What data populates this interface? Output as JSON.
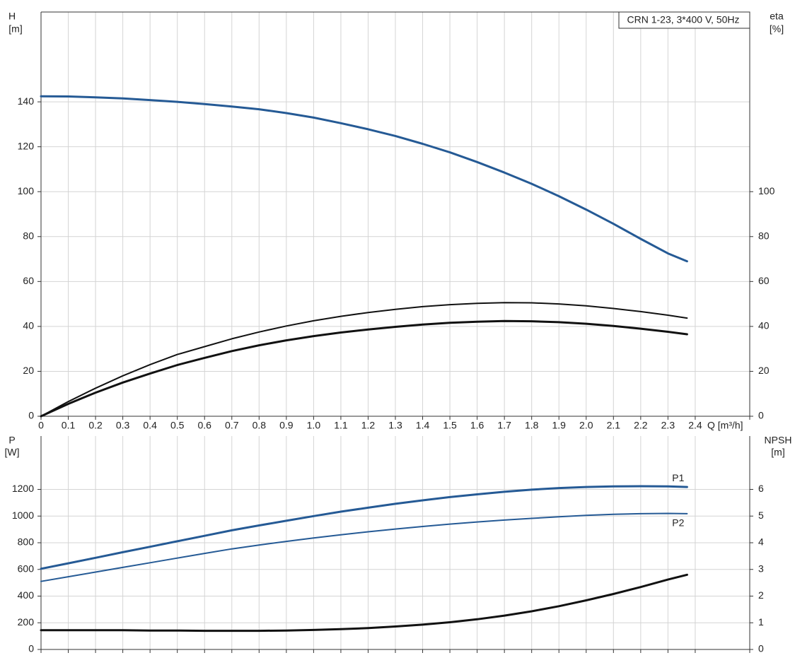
{
  "chart_data": [
    {
      "type": "line",
      "title": "CRN 1-23, 3*400 V, 50Hz",
      "y_label": "H",
      "y_unit": "[m]",
      "y2_label": "eta",
      "y2_unit": "[%]",
      "x_label": "Q [m³/h]",
      "xlim": [
        0,
        2.6
      ],
      "xticks": [
        0,
        0.1,
        0.2,
        0.3,
        0.4,
        0.5,
        0.6,
        0.7,
        0.8,
        0.9,
        {
          "value": 1,
          "label": "1.0"
        },
        1.1,
        1.2,
        1.3,
        1.4,
        1.5,
        1.6,
        1.7,
        1.8,
        1.9,
        {
          "value": 2,
          "label": "2.0"
        },
        2.1,
        2.2,
        2.3,
        2.4
      ],
      "ylim": [
        0,
        180
      ],
      "yticks": [
        0,
        20,
        40,
        60,
        80,
        100,
        120,
        140
      ],
      "y2lim": [
        0,
        180
      ],
      "y2ticks": [
        0,
        20,
        40,
        60,
        80,
        100
      ],
      "grid": true,
      "show_xtick_labels": true,
      "x": [
        0,
        0.1,
        0.2,
        0.3,
        0.4,
        0.5,
        0.6,
        0.7,
        0.8,
        0.9,
        1.0,
        1.1,
        1.2,
        1.3,
        1.4,
        1.5,
        1.6,
        1.7,
        1.8,
        1.9,
        2.0,
        2.1,
        2.2,
        2.3,
        2.37
      ],
      "series": [
        {
          "color": "#255a95",
          "width": 3,
          "values": [
            142.5,
            142.4,
            142,
            141.5,
            140.8,
            140,
            139,
            137.9,
            136.7,
            135,
            133,
            130.5,
            127.8,
            124.8,
            121.3,
            117.5,
            113.2,
            108.5,
            103.5,
            98,
            92,
            85.7,
            79,
            72.5,
            69
          ]
        },
        {
          "color": "#111111",
          "width": 2,
          "axis": "y2",
          "values": [
            0,
            6.5,
            12.5,
            18,
            23,
            27.5,
            31,
            34.5,
            37.5,
            40.2,
            42.5,
            44.5,
            46.2,
            47.6,
            48.8,
            49.7,
            50.3,
            50.6,
            50.5,
            50,
            49.2,
            48,
            46.6,
            45,
            43.7
          ]
        },
        {
          "color": "#111111",
          "width": 3,
          "axis": "y2",
          "values": [
            0,
            5.5,
            10.5,
            15,
            19,
            22.8,
            26,
            29,
            31.6,
            33.8,
            35.7,
            37.3,
            38.6,
            39.8,
            40.8,
            41.6,
            42.1,
            42.4,
            42.3,
            41.9,
            41.2,
            40.2,
            39,
            37.6,
            36.5
          ]
        }
      ]
    },
    {
      "type": "line",
      "y_label": "P",
      "y_unit": "[W]",
      "y2_label": "NPSH",
      "y2_unit": "[m]",
      "xlim": [
        0,
        2.6
      ],
      "xticks": [
        0,
        0.1,
        0.2,
        0.3,
        0.4,
        0.5,
        0.6,
        0.7,
        0.8,
        0.9,
        1,
        1.1,
        1.2,
        1.3,
        1.4,
        1.5,
        1.6,
        1.7,
        1.8,
        1.9,
        2,
        2.1,
        2.2,
        2.3,
        2.4
      ],
      "ylim": [
        0,
        1600
      ],
      "yticks": [
        0,
        200,
        400,
        600,
        800,
        1000,
        1200
      ],
      "y2lim": [
        0,
        8
      ],
      "y2ticks": [
        0,
        1,
        2,
        3,
        4,
        5,
        6
      ],
      "grid": true,
      "show_xtick_labels": false,
      "x": [
        0,
        0.1,
        0.2,
        0.3,
        0.4,
        0.5,
        0.6,
        0.7,
        0.8,
        0.9,
        1.0,
        1.1,
        1.2,
        1.3,
        1.4,
        1.5,
        1.6,
        1.7,
        1.8,
        1.9,
        2.0,
        2.1,
        2.2,
        2.3,
        2.37
      ],
      "series": [
        {
          "name": "P1",
          "color": "#255a95",
          "width": 3,
          "label_side": "above",
          "values": [
            605,
            646,
            687,
            729,
            770,
            811,
            852,
            893,
            930,
            965,
            1000,
            1033,
            1063,
            1092,
            1118,
            1142,
            1163,
            1182,
            1198,
            1210,
            1218,
            1223,
            1224,
            1222,
            1218
          ]
        },
        {
          "name": "P2",
          "color": "#255a95",
          "width": 2,
          "label_side": "below",
          "values": [
            510,
            545,
            580,
            615,
            650,
            685,
            720,
            754,
            783,
            810,
            836,
            860,
            882,
            903,
            922,
            940,
            956,
            970,
            983,
            995,
            1005,
            1013,
            1018,
            1020,
            1018
          ]
        },
        {
          "color": "#111111",
          "width": 3,
          "axis": "y2",
          "values": [
            0.72,
            0.72,
            0.72,
            0.72,
            0.71,
            0.71,
            0.7,
            0.7,
            0.7,
            0.71,
            0.73,
            0.76,
            0.8,
            0.86,
            0.93,
            1.02,
            1.13,
            1.27,
            1.43,
            1.62,
            1.84,
            2.08,
            2.34,
            2.62,
            2.8
          ]
        }
      ]
    }
  ]
}
